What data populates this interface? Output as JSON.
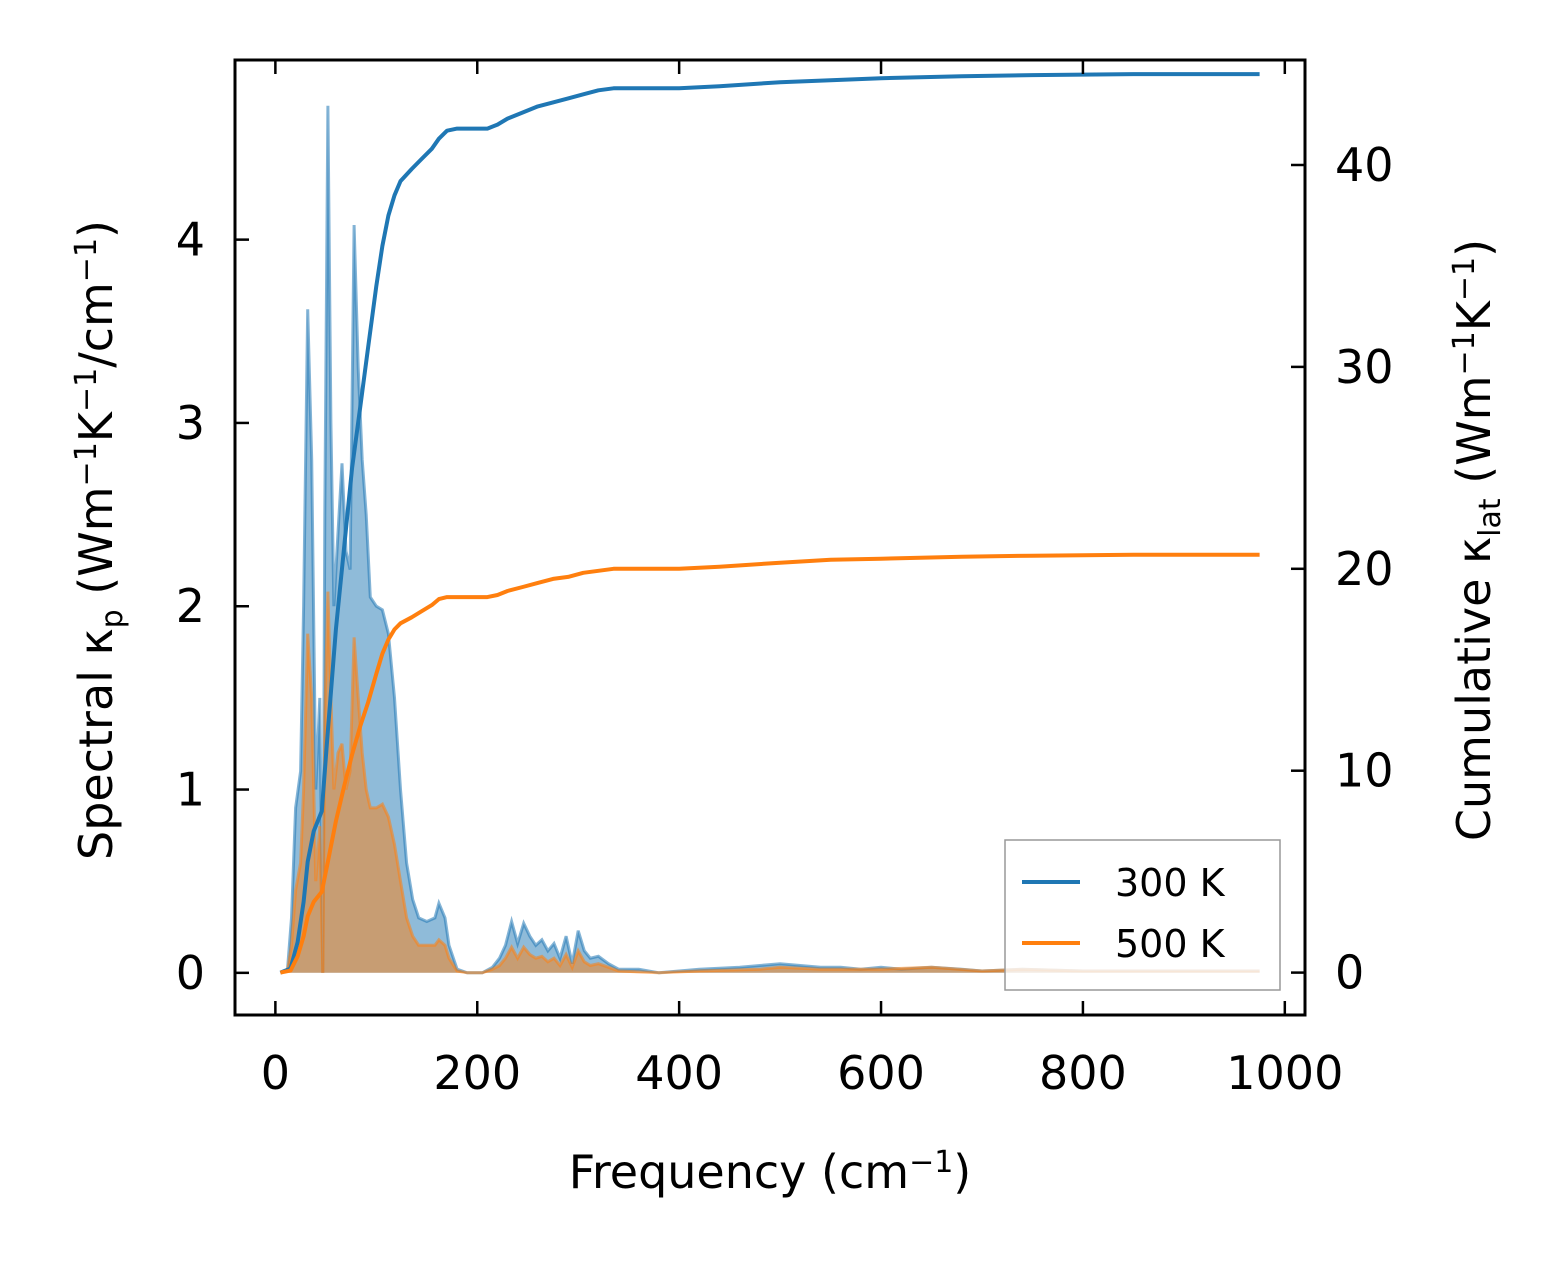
{
  "chart_data": {
    "type": "area",
    "xlabel": "Frequency (cm",
    "xlabel_sup": "−1",
    "xlabel_end": ")",
    "xlim": [
      -40,
      1020
    ],
    "ylim_left": [
      -0.23,
      4.98
    ],
    "ylim_right": [
      -2.1,
      45.2
    ],
    "x_ticks": [
      0,
      200,
      400,
      600,
      800,
      1000
    ],
    "y_ticks_left": [
      0,
      1,
      2,
      3,
      4
    ],
    "y_ticks_right": [
      0,
      10,
      20,
      30,
      40
    ],
    "ylabel_left": {
      "p1": "Spectral κ",
      "sub": "p",
      "p2": " (Wm",
      "sup1": "−1",
      "p3": "K",
      "sup2": "−1",
      "p4": "/cm",
      "sup3": "−1",
      "p5": ")"
    },
    "ylabel_right": {
      "p1": "Cumulative κ",
      "sub": "lat",
      "p2": " (Wm",
      "sup1": "−1",
      "p3": "K",
      "sup2": "−1",
      "p4": ")"
    },
    "legend_position": "lower-right",
    "series": [
      {
        "name": "300 K",
        "color": "#1f77b4",
        "spectral": [
          [
            5,
            0
          ],
          [
            12,
            0.02
          ],
          [
            16,
            0.3
          ],
          [
            20,
            0.9
          ],
          [
            25,
            1.1
          ],
          [
            28,
            2.0
          ],
          [
            32,
            3.62
          ],
          [
            36,
            2.8
          ],
          [
            40,
            1.0
          ],
          [
            44,
            1.5
          ],
          [
            47,
            0.0
          ],
          [
            49,
            2.5
          ],
          [
            52,
            4.73
          ],
          [
            55,
            3.0
          ],
          [
            58,
            2.0
          ],
          [
            62,
            2.4
          ],
          [
            66,
            2.78
          ],
          [
            70,
            2.3
          ],
          [
            74,
            2.2
          ],
          [
            78,
            4.08
          ],
          [
            82,
            3.3
          ],
          [
            86,
            2.8
          ],
          [
            90,
            2.5
          ],
          [
            94,
            2.05
          ],
          [
            100,
            2.0
          ],
          [
            106,
            1.98
          ],
          [
            112,
            1.85
          ],
          [
            118,
            1.5
          ],
          [
            124,
            1.0
          ],
          [
            130,
            0.6
          ],
          [
            136,
            0.4
          ],
          [
            142,
            0.3
          ],
          [
            150,
            0.28
          ],
          [
            158,
            0.3
          ],
          [
            162,
            0.38
          ],
          [
            168,
            0.3
          ],
          [
            172,
            0.15
          ],
          [
            180,
            0.02
          ],
          [
            190,
            0.0
          ],
          [
            205,
            0.0
          ],
          [
            215,
            0.03
          ],
          [
            222,
            0.08
          ],
          [
            228,
            0.15
          ],
          [
            234,
            0.28
          ],
          [
            240,
            0.16
          ],
          [
            246,
            0.27
          ],
          [
            252,
            0.2
          ],
          [
            258,
            0.15
          ],
          [
            264,
            0.18
          ],
          [
            270,
            0.12
          ],
          [
            276,
            0.16
          ],
          [
            282,
            0.08
          ],
          [
            288,
            0.2
          ],
          [
            294,
            0.05
          ],
          [
            300,
            0.23
          ],
          [
            306,
            0.12
          ],
          [
            312,
            0.08
          ],
          [
            320,
            0.09
          ],
          [
            330,
            0.05
          ],
          [
            340,
            0.02
          ],
          [
            360,
            0.02
          ],
          [
            380,
            0.0
          ],
          [
            420,
            0.02
          ],
          [
            460,
            0.03
          ],
          [
            480,
            0.04
          ],
          [
            500,
            0.05
          ],
          [
            520,
            0.04
          ],
          [
            540,
            0.03
          ],
          [
            560,
            0.03
          ],
          [
            580,
            0.02
          ],
          [
            600,
            0.03
          ],
          [
            620,
            0.02
          ],
          [
            650,
            0.03
          ],
          [
            680,
            0.02
          ],
          [
            700,
            0.01
          ],
          [
            740,
            0.02
          ],
          [
            800,
            0.01
          ],
          [
            900,
            0.01
          ],
          [
            975,
            0.01
          ]
        ],
        "cumulative": [
          [
            5,
            0
          ],
          [
            15,
            0.2
          ],
          [
            22,
            1.5
          ],
          [
            28,
            3.5
          ],
          [
            32,
            5.5
          ],
          [
            38,
            7.0
          ],
          [
            46,
            8.0
          ],
          [
            52,
            12.0
          ],
          [
            60,
            17.0
          ],
          [
            68,
            21.0
          ],
          [
            76,
            25.0
          ],
          [
            84,
            28.0
          ],
          [
            92,
            31.0
          ],
          [
            100,
            34.0
          ],
          [
            106,
            36.0
          ],
          [
            112,
            37.5
          ],
          [
            118,
            38.5
          ],
          [
            124,
            39.2
          ],
          [
            135,
            39.8
          ],
          [
            145,
            40.3
          ],
          [
            155,
            40.8
          ],
          [
            162,
            41.3
          ],
          [
            170,
            41.7
          ],
          [
            180,
            41.8
          ],
          [
            200,
            41.8
          ],
          [
            210,
            41.8
          ],
          [
            220,
            42.0
          ],
          [
            230,
            42.3
          ],
          [
            245,
            42.6
          ],
          [
            260,
            42.9
          ],
          [
            275,
            43.1
          ],
          [
            290,
            43.3
          ],
          [
            305,
            43.5
          ],
          [
            320,
            43.7
          ],
          [
            335,
            43.8
          ],
          [
            360,
            43.8
          ],
          [
            400,
            43.8
          ],
          [
            440,
            43.9
          ],
          [
            500,
            44.1
          ],
          [
            550,
            44.2
          ],
          [
            600,
            44.3
          ],
          [
            680,
            44.4
          ],
          [
            750,
            44.45
          ],
          [
            850,
            44.5
          ],
          [
            975,
            44.5
          ]
        ]
      },
      {
        "name": "500 K",
        "color": "#ff7f0e",
        "spectral": [
          [
            5,
            0
          ],
          [
            12,
            0.01
          ],
          [
            16,
            0.15
          ],
          [
            20,
            0.45
          ],
          [
            25,
            0.6
          ],
          [
            28,
            1.0
          ],
          [
            32,
            1.85
          ],
          [
            36,
            1.5
          ],
          [
            40,
            0.5
          ],
          [
            44,
            0.8
          ],
          [
            47,
            0.0
          ],
          [
            49,
            1.4
          ],
          [
            52,
            2.08
          ],
          [
            55,
            1.5
          ],
          [
            58,
            1.0
          ],
          [
            62,
            1.2
          ],
          [
            66,
            1.25
          ],
          [
            70,
            1.0
          ],
          [
            74,
            1.1
          ],
          [
            78,
            1.83
          ],
          [
            82,
            1.5
          ],
          [
            86,
            1.2
          ],
          [
            90,
            1.0
          ],
          [
            94,
            0.9
          ],
          [
            100,
            0.9
          ],
          [
            106,
            0.92
          ],
          [
            112,
            0.85
          ],
          [
            118,
            0.7
          ],
          [
            124,
            0.5
          ],
          [
            130,
            0.3
          ],
          [
            136,
            0.2
          ],
          [
            142,
            0.15
          ],
          [
            150,
            0.15
          ],
          [
            158,
            0.15
          ],
          [
            162,
            0.18
          ],
          [
            168,
            0.15
          ],
          [
            172,
            0.08
          ],
          [
            180,
            0.01
          ],
          [
            190,
            0.0
          ],
          [
            205,
            0.0
          ],
          [
            215,
            0.02
          ],
          [
            222,
            0.04
          ],
          [
            228,
            0.08
          ],
          [
            234,
            0.14
          ],
          [
            240,
            0.08
          ],
          [
            246,
            0.14
          ],
          [
            252,
            0.1
          ],
          [
            258,
            0.08
          ],
          [
            264,
            0.09
          ],
          [
            270,
            0.06
          ],
          [
            276,
            0.08
          ],
          [
            282,
            0.04
          ],
          [
            288,
            0.1
          ],
          [
            294,
            0.03
          ],
          [
            300,
            0.12
          ],
          [
            306,
            0.06
          ],
          [
            312,
            0.04
          ],
          [
            320,
            0.05
          ],
          [
            330,
            0.03
          ],
          [
            340,
            0.01
          ],
          [
            380,
            0.0
          ],
          [
            420,
            0.01
          ],
          [
            480,
            0.02
          ],
          [
            500,
            0.03
          ],
          [
            540,
            0.02
          ],
          [
            600,
            0.02
          ],
          [
            650,
            0.03
          ],
          [
            700,
            0.01
          ],
          [
            740,
            0.02
          ],
          [
            800,
            0.01
          ],
          [
            975,
            0.01
          ]
        ],
        "cumulative": [
          [
            5,
            0
          ],
          [
            15,
            0.1
          ],
          [
            22,
            0.8
          ],
          [
            28,
            1.8
          ],
          [
            32,
            2.8
          ],
          [
            38,
            3.5
          ],
          [
            46,
            4.0
          ],
          [
            52,
            5.5
          ],
          [
            60,
            7.5
          ],
          [
            68,
            9.2
          ],
          [
            76,
            10.8
          ],
          [
            84,
            12.2
          ],
          [
            92,
            13.4
          ],
          [
            100,
            14.8
          ],
          [
            106,
            15.8
          ],
          [
            112,
            16.5
          ],
          [
            118,
            17.0
          ],
          [
            124,
            17.3
          ],
          [
            135,
            17.6
          ],
          [
            145,
            17.9
          ],
          [
            155,
            18.2
          ],
          [
            162,
            18.5
          ],
          [
            170,
            18.6
          ],
          [
            180,
            18.6
          ],
          [
            200,
            18.6
          ],
          [
            210,
            18.6
          ],
          [
            220,
            18.7
          ],
          [
            230,
            18.9
          ],
          [
            245,
            19.1
          ],
          [
            260,
            19.3
          ],
          [
            275,
            19.5
          ],
          [
            290,
            19.6
          ],
          [
            305,
            19.8
          ],
          [
            320,
            19.9
          ],
          [
            335,
            20.0
          ],
          [
            360,
            20.0
          ],
          [
            400,
            20.0
          ],
          [
            440,
            20.1
          ],
          [
            500,
            20.3
          ],
          [
            550,
            20.45
          ],
          [
            600,
            20.5
          ],
          [
            680,
            20.6
          ],
          [
            750,
            20.65
          ],
          [
            850,
            20.7
          ],
          [
            975,
            20.7
          ]
        ]
      }
    ]
  }
}
